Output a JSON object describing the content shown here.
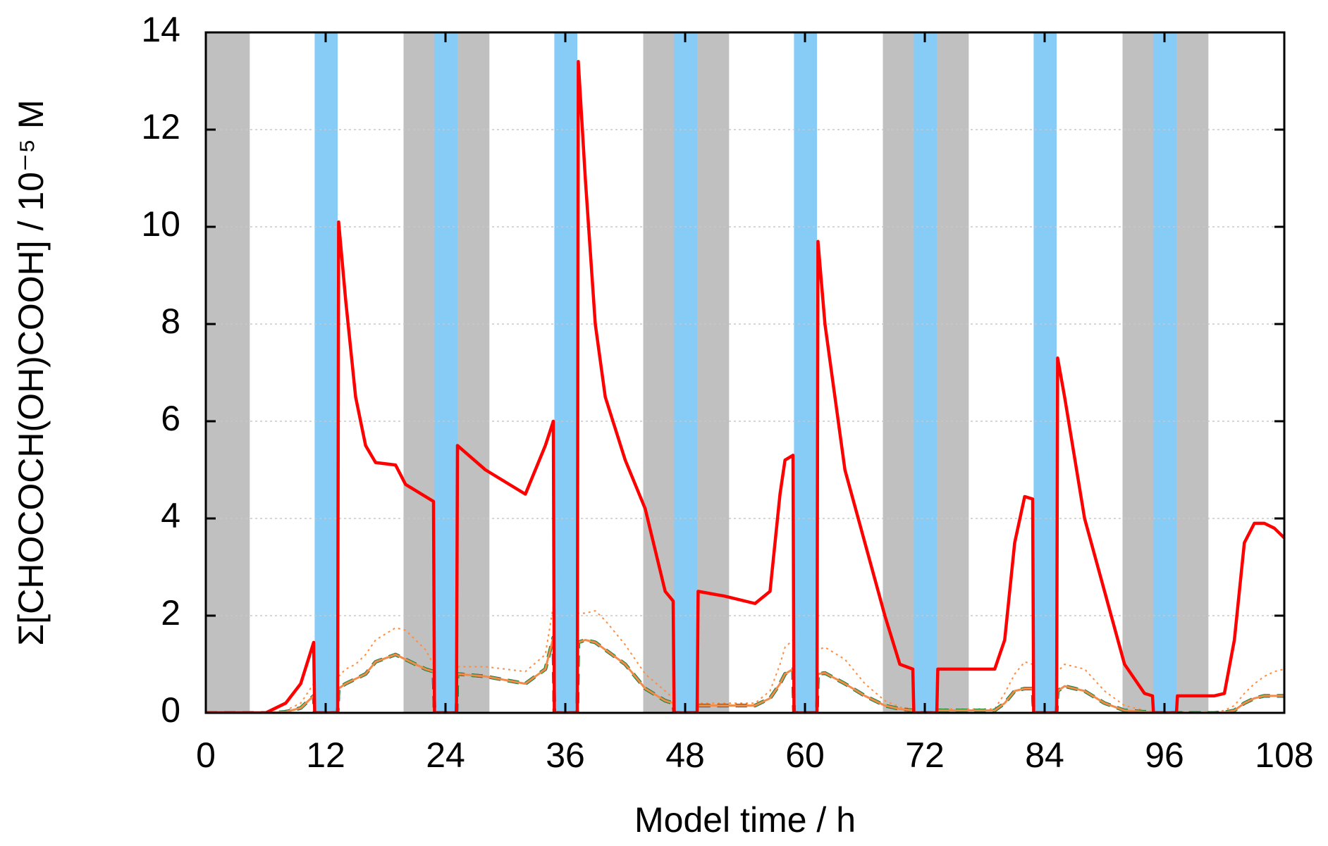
{
  "chart_data": {
    "type": "line",
    "xlabel": "Model time / h",
    "ylabel": "Σ[CHOCOCH(OH)COOH] / 10⁻⁵ M",
    "xlim": [
      0,
      108
    ],
    "ylim": [
      0,
      14
    ],
    "xticks": [
      0,
      12,
      24,
      36,
      48,
      60,
      72,
      84,
      96,
      108
    ],
    "yticks": [
      0,
      2,
      4,
      6,
      8,
      10,
      12,
      14
    ],
    "grid": "y",
    "bands": [
      {
        "color": "#c0c0c0",
        "spans": [
          [
            0,
            4.4
          ],
          [
            19.8,
            28.4
          ],
          [
            43.8,
            52.4
          ],
          [
            67.8,
            76.4
          ],
          [
            91.8,
            100.4
          ]
        ]
      },
      {
        "color": "#87cbf7",
        "spans": [
          [
            10.9,
            13.2
          ],
          [
            22.9,
            25.2
          ],
          [
            34.9,
            37.2
          ],
          [
            46.9,
            49.2
          ],
          [
            58.9,
            61.2
          ],
          [
            70.9,
            73.2
          ],
          [
            82.9,
            85.2
          ],
          [
            94.9,
            97.2
          ]
        ]
      }
    ],
    "x": [
      0,
      6,
      8,
      9.5,
      10.8,
      10.9,
      13.2,
      13.3,
      14,
      15,
      16,
      17,
      19,
      20,
      22,
      22.8,
      22.9,
      25.1,
      25.2,
      28,
      32,
      34,
      34.8,
      34.9,
      37.2,
      37.3,
      38,
      39,
      40,
      42,
      44,
      46,
      46.8,
      46.9,
      49.2,
      49.3,
      52,
      55,
      56.5,
      57.5,
      58,
      58.8,
      58.9,
      61.2,
      61.3,
      62,
      64,
      66,
      68,
      69.5,
      70.8,
      70.9,
      73.2,
      73.3,
      76,
      79,
      80,
      81,
      82,
      82.8,
      82.9,
      85.2,
      85.3,
      86,
      88,
      90,
      92,
      94,
      94.8,
      94.9,
      97.2,
      97.3,
      101,
      102,
      103,
      104,
      105,
      106,
      107,
      108
    ],
    "series": [
      {
        "color": "#ff8c3c",
        "dash": "dotted",
        "values": [
          0,
          0,
          0.05,
          0.2,
          0.6,
          0,
          0,
          0.75,
          0.9,
          1.0,
          1.2,
          1.5,
          1.75,
          1.7,
          1.3,
          1.0,
          0,
          0,
          0.95,
          0.95,
          0.85,
          1.2,
          2.2,
          0,
          0,
          2.05,
          2.05,
          2.1,
          1.9,
          1.4,
          0.8,
          0.45,
          0.3,
          0,
          0,
          0.2,
          0.2,
          0.2,
          0.45,
          1.0,
          1.35,
          1.5,
          0,
          0,
          1.3,
          1.35,
          1.1,
          0.6,
          0.25,
          0.12,
          0.08,
          0,
          0,
          0.08,
          0.08,
          0.08,
          0.4,
          0.8,
          1.05,
          1.0,
          0,
          0,
          0.85,
          1.0,
          0.9,
          0.45,
          0.15,
          0.05,
          0.03,
          0,
          0,
          0.02,
          0.02,
          0.05,
          0.15,
          0.4,
          0.6,
          0.75,
          0.85,
          0.9
        ]
      },
      {
        "color": "#0000ff",
        "dash": "dashed",
        "values": [
          0,
          0,
          0.02,
          0.1,
          0.35,
          0,
          0,
          0.5,
          0.6,
          0.7,
          0.8,
          1.05,
          1.2,
          1.1,
          0.9,
          0.85,
          0,
          0,
          0.8,
          0.75,
          0.6,
          0.9,
          1.55,
          0,
          0,
          1.45,
          1.5,
          1.45,
          1.3,
          1.0,
          0.5,
          0.25,
          0.2,
          0,
          0,
          0.15,
          0.15,
          0.15,
          0.3,
          0.6,
          0.8,
          0.9,
          0,
          0,
          0.8,
          0.82,
          0.6,
          0.35,
          0.15,
          0.08,
          0.05,
          0,
          0,
          0.05,
          0.05,
          0.05,
          0.2,
          0.45,
          0.5,
          0.5,
          0,
          0,
          0.45,
          0.55,
          0.45,
          0.2,
          0.05,
          0.02,
          0.02,
          0,
          0,
          0,
          0,
          0.01,
          0.05,
          0.2,
          0.3,
          0.35,
          0.35,
          0.35
        ]
      },
      {
        "color": "#1f8a2e",
        "dash": "dashed",
        "values": [
          0,
          0,
          0.02,
          0.1,
          0.35,
          0,
          0,
          0.5,
          0.6,
          0.7,
          0.8,
          1.05,
          1.2,
          1.1,
          0.9,
          0.85,
          0,
          0,
          0.8,
          0.75,
          0.6,
          0.9,
          1.55,
          0,
          0,
          1.45,
          1.5,
          1.45,
          1.3,
          1.0,
          0.5,
          0.25,
          0.2,
          0,
          0,
          0.15,
          0.15,
          0.15,
          0.3,
          0.6,
          0.8,
          0.9,
          0,
          0,
          0.8,
          0.82,
          0.6,
          0.35,
          0.15,
          0.08,
          0.05,
          0,
          0,
          0.05,
          0.05,
          0.05,
          0.2,
          0.45,
          0.5,
          0.5,
          0,
          0,
          0.45,
          0.55,
          0.45,
          0.2,
          0.05,
          0.02,
          0.02,
          0,
          0,
          0,
          0,
          0.01,
          0.05,
          0.2,
          0.3,
          0.35,
          0.35,
          0.35
        ]
      },
      {
        "color": "#f28a4a",
        "dash": "solid",
        "values": [
          0,
          0,
          0.02,
          0.1,
          0.35,
          0,
          0,
          0.5,
          0.6,
          0.7,
          0.8,
          1.05,
          1.2,
          1.1,
          0.9,
          0.85,
          0,
          0,
          0.8,
          0.75,
          0.6,
          0.9,
          1.55,
          0,
          0,
          1.45,
          1.5,
          1.45,
          1.3,
          1.0,
          0.5,
          0.25,
          0.2,
          0,
          0,
          0.15,
          0.15,
          0.15,
          0.3,
          0.6,
          0.8,
          0.9,
          0,
          0,
          0.8,
          0.82,
          0.6,
          0.35,
          0.15,
          0.08,
          0.05,
          0,
          0,
          0.05,
          0.05,
          0.05,
          0.2,
          0.45,
          0.5,
          0.5,
          0,
          0,
          0.45,
          0.55,
          0.45,
          0.2,
          0.05,
          0.02,
          0.02,
          0,
          0,
          0,
          0,
          0.01,
          0.05,
          0.2,
          0.3,
          0.35,
          0.35,
          0.35
        ]
      },
      {
        "color": "#ff0000",
        "dash": "solid",
        "values": [
          0,
          0,
          0.2,
          0.6,
          1.45,
          0,
          0,
          10.1,
          8.5,
          6.5,
          5.5,
          5.15,
          5.1,
          4.7,
          4.45,
          4.35,
          0,
          0,
          5.5,
          5.0,
          4.5,
          5.5,
          6.0,
          0,
          0,
          13.4,
          11,
          8,
          6.5,
          5.2,
          4.2,
          2.5,
          2.3,
          0,
          0,
          2.5,
          2.4,
          2.25,
          2.5,
          4.5,
          5.2,
          5.3,
          0,
          0,
          9.7,
          8,
          5,
          3.5,
          2,
          1.0,
          0.9,
          0,
          0,
          0.9,
          0.9,
          0.9,
          1.5,
          3.5,
          4.45,
          4.4,
          0,
          0,
          7.3,
          6.5,
          4,
          2.5,
          1.0,
          0.4,
          0.35,
          0,
          0,
          0.35,
          0.35,
          0.4,
          1.5,
          3.5,
          3.9,
          3.9,
          3.8,
          3.6
        ]
      }
    ]
  }
}
